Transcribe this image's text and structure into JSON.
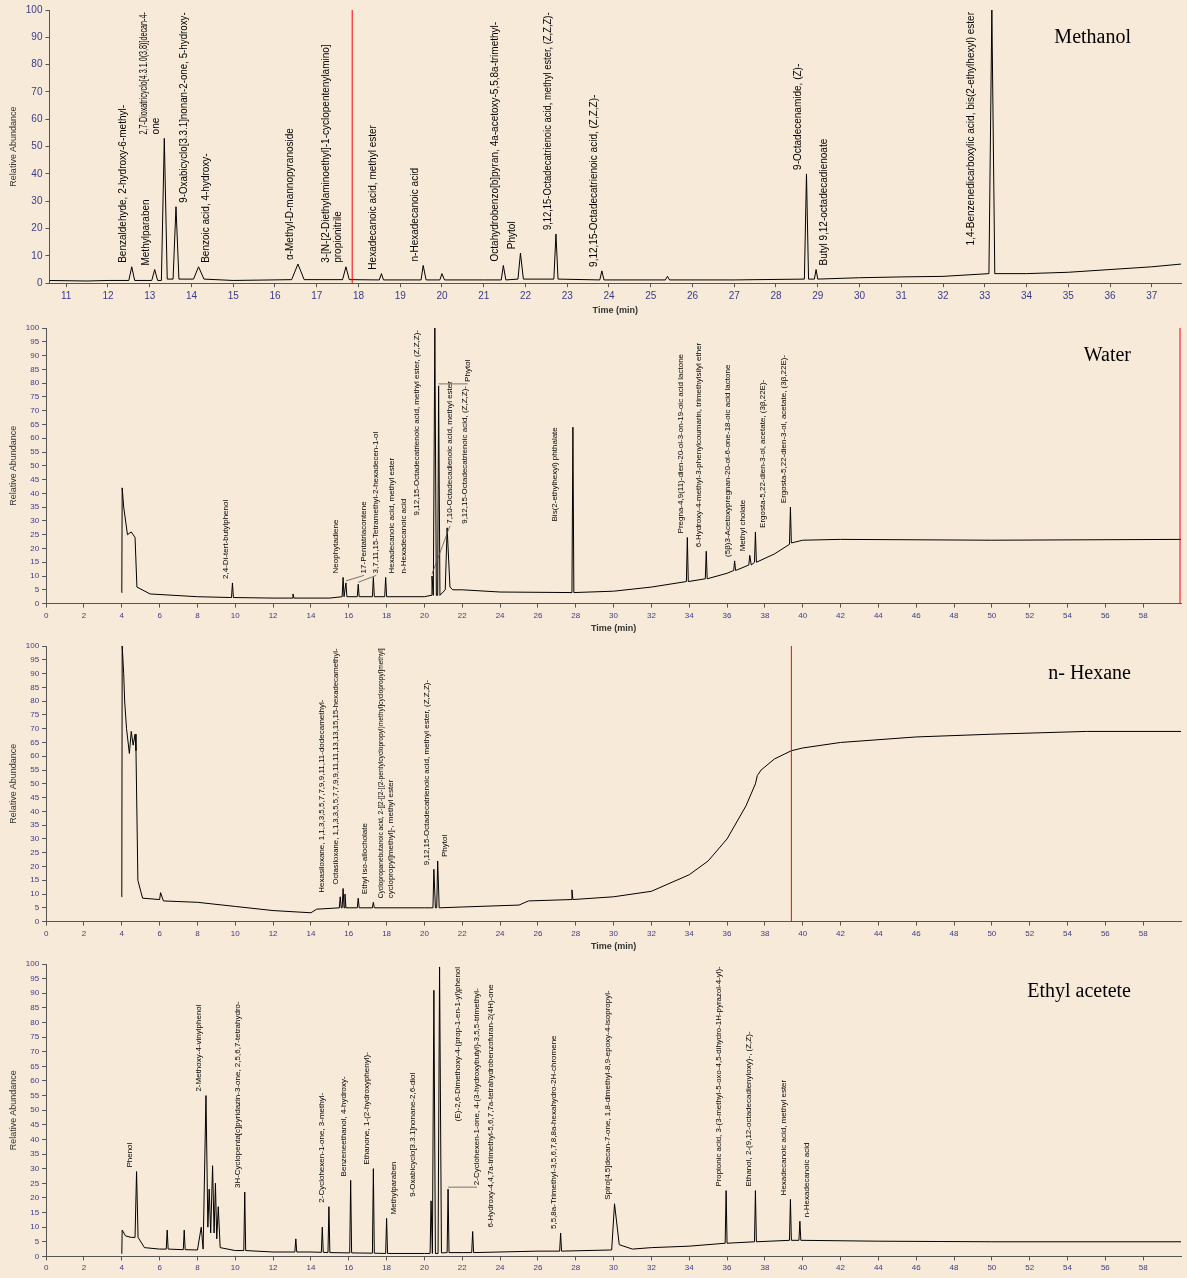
{
  "chart_data": [
    {
      "type": "line",
      "title": "Methanol",
      "xlabel": "Time (min)",
      "ylabel": "Relative Abundance",
      "xlim": [
        10.6,
        37.7
      ],
      "xticks": [
        11,
        12,
        13,
        14,
        15,
        16,
        17,
        18,
        19,
        20,
        21,
        22,
        23,
        24,
        25,
        26,
        27,
        28,
        29,
        30,
        31,
        32,
        33,
        34,
        35,
        36,
        37
      ],
      "ylim": [
        0,
        100
      ],
      "yticks": [
        0,
        10,
        20,
        30,
        40,
        50,
        60,
        70,
        80,
        90,
        100
      ],
      "marker": "none",
      "series": [
        {
          "color": "#000000",
          "x": [
            10.6,
            11.5,
            12.0,
            12.5,
            12.57,
            12.64,
            13.05,
            13.12,
            13.19,
            13.28,
            13.35,
            13.42,
            13.56,
            13.63,
            13.7,
            14.05,
            14.17,
            14.3,
            15,
            16.4,
            16.55,
            16.7,
            17.62,
            17.7,
            17.78,
            18.5,
            18.55,
            18.6,
            19.5,
            19.55,
            19.62,
            19.95,
            20.0,
            20.06,
            21,
            21.42,
            21.47,
            21.53,
            21.82,
            21.88,
            21.95,
            22.68,
            22.73,
            22.78,
            23.78,
            23.83,
            23.88,
            25.35,
            25.4,
            25.45,
            27,
            28.68,
            28.73,
            28.78,
            28.92,
            28.96,
            29.0,
            30,
            31,
            32,
            33.1,
            33.17,
            33.24,
            34,
            35,
            36,
            37,
            37.7
          ],
          "values": [
            1,
            0.8,
            1,
            1,
            6,
            1,
            1,
            5,
            1,
            1,
            53,
            1.5,
            1.5,
            28,
            1.5,
            1.5,
            6,
            1.5,
            1,
            1.3,
            7,
            1.3,
            1.3,
            6,
            1.3,
            1.2,
            3.5,
            1.2,
            1.2,
            6.5,
            1.2,
            1.2,
            3.5,
            1.2,
            1.2,
            1.2,
            6.5,
            1.2,
            1.5,
            11,
            1.5,
            1.5,
            18,
            1.5,
            1.2,
            4.5,
            1.2,
            1.2,
            2.5,
            1.2,
            1.2,
            1.5,
            40,
            1.5,
            1.5,
            5,
            1.5,
            2,
            2.3,
            2.5,
            3.5,
            100,
            3.5,
            3.5,
            4,
            5,
            6,
            7
          ]
        }
      ],
      "ref_lines": [
        {
          "axis": "x",
          "value": 17.85,
          "color": "#ff0000"
        }
      ],
      "annotations": [
        {
          "text": "Benzaldehyde, 2-hydroxy-6-methyl-",
          "x": 12.57,
          "y": 6
        },
        {
          "text": "Methylparaben",
          "x": 13.12,
          "y": 5
        },
        {
          "text": "2,7-Dioxatricyclo[4.3.1.0(3,8)]decan-4-\none",
          "x": 13.35,
          "y": 53
        },
        {
          "text": "9-Oxabicyclo[3.3.1]nonan-2-one, 5-hydroxy-",
          "x": 13.63,
          "y": 28
        },
        {
          "text": "Benzoic acid, 4-hydroxy-",
          "x": 14.17,
          "y": 6
        },
        {
          "text": "α-Methyl-D-mannopyranoside",
          "x": 16.55,
          "y": 7
        },
        {
          "text": "3-[N-[2-Diethylaminoethyl]-1-cyclopentenylamino]\npropionitrile",
          "x": 17.7,
          "y": 6
        },
        {
          "text": "Hexadecanoic acid, methyl ester",
          "x": 18.55,
          "y": 3.5
        },
        {
          "text": "n-Hexadecanoic acid",
          "x": 19.55,
          "y": 6.5
        },
        {
          "text": "Octahydrobenzo[b]pyran, 4a-acetoxy-5,5,8a-trimethyl-",
          "x": 21.47,
          "y": 6.5
        },
        {
          "text": "Phytol",
          "x": 21.88,
          "y": 11
        },
        {
          "text": "9,12,15-Octadecatrienoic acid, methyl ester, (Z,Z,Z)-",
          "x": 22.73,
          "y": 18
        },
        {
          "text": "9,12,15-Octadecatrienoic acid, (Z,Z,Z)-",
          "x": 23.83,
          "y": 4.5
        },
        {
          "text": "9-Octadecenamide, (Z)-",
          "x": 28.73,
          "y": 40
        },
        {
          "text": "Butyl 9,12-octadecadienoate",
          "x": 28.96,
          "y": 5
        },
        {
          "text": "1,4-Benzenedicarboxylic acid, bis(2-ethylhexyl) ester",
          "x": 33.17,
          "y": 100
        }
      ]
    },
    {
      "type": "line",
      "title": "Water",
      "xlabel": "Time (min)",
      "ylabel": "Relative Abundance",
      "xlim": [
        0,
        60
      ],
      "xticks": [
        0,
        2,
        4,
        6,
        8,
        10,
        12,
        14,
        16,
        18,
        20,
        22,
        24,
        26,
        28,
        30,
        32,
        34,
        36,
        38,
        40,
        42,
        44,
        46,
        48,
        50,
        52,
        54,
        56,
        58
      ],
      "ylim": [
        0,
        100
      ],
      "yticks": [
        0,
        5,
        10,
        15,
        20,
        25,
        30,
        35,
        40,
        45,
        50,
        55,
        60,
        65,
        70,
        75,
        80,
        85,
        90,
        95,
        100
      ],
      "marker": "none",
      "series": [
        {
          "color": "#000000",
          "x": [
            4.0,
            4.02,
            4.1,
            4.3,
            4.5,
            4.7,
            4.8,
            5.5,
            8,
            9.8,
            9.85,
            9.9,
            12,
            13.0,
            13.05,
            13.1,
            15,
            15.65,
            15.7,
            15.75,
            15.8,
            15.85,
            15.9,
            16.45,
            16.5,
            16.55,
            17.25,
            17.3,
            17.35,
            17.9,
            17.95,
            18.0,
            20,
            20.35,
            20.4,
            20.47,
            20.55,
            20.63,
            20.7,
            20.75,
            20.82,
            21.1,
            21.2,
            21.35,
            21.5,
            22,
            24,
            27.8,
            27.85,
            27.9,
            30,
            32,
            33.85,
            33.9,
            33.95,
            34.85,
            34.9,
            34.95,
            36,
            36.35,
            36.4,
            36.45,
            37.15,
            37.2,
            37.28,
            37.45,
            37.5,
            37.55,
            38.5,
            39.3,
            39.35,
            39.4,
            40,
            42,
            50,
            60
          ],
          "values": [
            4,
            42,
            35,
            25,
            26,
            24,
            6,
            3.5,
            2.5,
            2.2,
            7.5,
            2.2,
            2,
            2,
            3.5,
            2,
            2,
            2.5,
            9.5,
            2.5,
            2.5,
            7.5,
            2.5,
            2.5,
            7,
            2.5,
            2.5,
            9.5,
            2.5,
            2.5,
            9.5,
            2.5,
            2.5,
            3,
            10,
            3,
            100,
            3,
            3,
            79,
            3,
            5,
            27.5,
            6,
            5,
            5,
            4.2,
            4,
            64,
            4,
            4.5,
            6,
            8,
            24,
            8,
            9,
            19,
            9,
            11,
            12,
            15.5,
            12,
            14,
            17.5,
            14,
            15,
            26,
            15,
            18,
            21.5,
            35,
            22,
            23,
            23.3,
            23,
            23.3
          ]
        }
      ],
      "ref_lines": [
        {
          "axis": "x",
          "value": 60,
          "color": "#ff0000"
        }
      ],
      "annotations": [
        {
          "text": "2,4-Di-tert-butylphenol",
          "x": 9.85,
          "y": 7.5
        },
        {
          "text": "Neophytadiene",
          "x": 15.7,
          "y": 9.5
        },
        {
          "text": "17-Pentatriacontene",
          "x": 15.85,
          "y": 7.5
        },
        {
          "text": "3,7,11,15-Tetramethyl-2-hexadecen-1-ol",
          "x": 16.5,
          "y": 7
        },
        {
          "text": "Hexadecanoic acid, methyl ester",
          "x": 17.3,
          "y": 9.5
        },
        {
          "text": "n-Hexadecanoic acid",
          "x": 17.95,
          "y": 9.5
        },
        {
          "text": "7,10-Octadecadienoic acid, methyl ester",
          "x": 20.4,
          "y": 10
        },
        {
          "text": "9,12,15-Octadecatrienoic acid, methyl ester, (Z,Z,Z)-",
          "x": 20.55,
          "y": 100
        },
        {
          "text": "Phytol",
          "x": 20.75,
          "y": 79
        },
        {
          "text": "9,12,15-Octadecatrienoic acid, (Z,Z,Z)-",
          "x": 21.2,
          "y": 27.5
        },
        {
          "text": "Bis(2-ethylhexyl) phthalate",
          "x": 27.85,
          "y": 64
        },
        {
          "text": "Pregna-4,9(11)-dien-20-ol-3-on-19-oic acid lactone",
          "x": 33.9,
          "y": 24
        },
        {
          "text": "6-Hydroxy-4-methyl-3-phenylcoumarin, trimethylsilyl ether",
          "x": 34.9,
          "y": 19
        },
        {
          "text": "(5β)3-Acetoxypregnan-20-ol-6-one-18-oic acid lactone",
          "x": 36.4,
          "y": 15.5
        },
        {
          "text": "Methyl cholate",
          "x": 37.2,
          "y": 17.5
        },
        {
          "text": "Ergosta-5,22-dien-3-ol, acetate, (3β,22E)-",
          "x": 37.5,
          "y": 26
        },
        {
          "text": "Ergosta-5,22-dien-3-ol, acetate, (3β,22E)-",
          "x": 39.35,
          "y": 35
        }
      ]
    },
    {
      "type": "line",
      "title": "n- Hexane",
      "xlabel": "Time (min)",
      "ylabel": "Relative Abundance",
      "xlim": [
        0,
        60
      ],
      "xticks": [
        0,
        2,
        4,
        6,
        8,
        10,
        12,
        14,
        16,
        18,
        20,
        22,
        24,
        26,
        28,
        30,
        32,
        34,
        36,
        38,
        40,
        42,
        44,
        46,
        48,
        50,
        52,
        54,
        56,
        58
      ],
      "ylim": [
        0,
        100
      ],
      "yticks": [
        0,
        5,
        10,
        15,
        20,
        25,
        30,
        35,
        40,
        45,
        50,
        55,
        60,
        65,
        70,
        75,
        80,
        85,
        90,
        95,
        100
      ],
      "marker": "none",
      "series": [
        {
          "color": "#000000",
          "x": [
            4.0,
            4.02,
            4.1,
            4.15,
            4.25,
            4.4,
            4.5,
            4.6,
            4.7,
            4.75,
            4.85,
            5.0,
            5.1,
            6.0,
            6.05,
            6.2,
            8,
            10,
            12,
            14,
            14.3,
            15.5,
            15.55,
            15.6,
            15.65,
            15.7,
            15.75,
            15.8,
            15.85,
            16.45,
            16.5,
            16.55,
            17.25,
            17.3,
            17.35,
            20,
            20.45,
            20.5,
            20.58,
            20.65,
            20.7,
            20.78,
            22,
            25,
            25.5,
            27.75,
            27.8,
            27.85,
            30,
            32,
            34,
            35,
            36,
            37,
            37.5,
            37.6,
            37.8,
            38.5,
            39.4,
            40,
            42,
            46,
            50,
            55,
            60
          ],
          "values": [
            9,
            100,
            90,
            80,
            70,
            61,
            69,
            64,
            68,
            62,
            15,
            11,
            8.5,
            8,
            10.5,
            7.5,
            7,
            5.5,
            4,
            3.2,
            4.5,
            5,
            9,
            5,
            5,
            12,
            5,
            10,
            5,
            5,
            8.5,
            5,
            5,
            7,
            5,
            5,
            5,
            19,
            5,
            5,
            22,
            5,
            5.3,
            6,
            7.5,
            8,
            11.5,
            8,
            9,
            11,
            17,
            22,
            30,
            42,
            50,
            53,
            55,
            59,
            62,
            63,
            65,
            67,
            68,
            69,
            69
          ]
        }
      ],
      "ref_lines": [
        {
          "axis": "x",
          "value": 39.4,
          "color": "#ff0000"
        }
      ],
      "annotations": [
        {
          "text": "Hexasiloxane, 1,1,3,3,5,5,7,7,9,9,11,11-dodecamethyl-",
          "x": 15.55,
          "y": 9
        },
        {
          "text": "Octasiloxane, 1,1,3,3,5,5,7,7,9,9,11,11,13,13,15,15-hexadecamethyl-",
          "x": 15.7,
          "y": 12
        },
        {
          "text": "Ethyl iso-allocholate",
          "x": 16.5,
          "y": 8.5
        },
        {
          "text": "Cyclopropanebutanoic acid, 2-[[2-[[2-[(2-pentylcyclopropyl)methyl]cyclopropyl]methyl]\ncyclopropyl]methyl]-, methyl ester",
          "x": 17.3,
          "y": 7
        },
        {
          "text": "9,12,15-Octadecatrienoic acid, methyl ester, (Z,Z,Z)-",
          "x": 20.5,
          "y": 19
        },
        {
          "text": "Phytol",
          "x": 20.7,
          "y": 22
        }
      ]
    },
    {
      "type": "line",
      "title": "Ethyl acetete",
      "ylabel": "Relative Abundance",
      "xlim": [
        0,
        60
      ],
      "xticks": [
        0,
        2,
        4,
        6,
        8,
        10,
        12,
        14,
        16,
        18,
        20,
        22,
        24,
        26,
        28,
        30,
        32,
        34,
        36,
        38,
        40,
        42,
        44,
        46,
        48,
        50,
        52,
        54,
        56,
        58
      ],
      "ylim": [
        0,
        100
      ],
      "yticks": [
        0,
        5,
        10,
        15,
        20,
        25,
        30,
        35,
        40,
        45,
        50,
        55,
        60,
        65,
        70,
        75,
        80,
        85,
        90,
        95,
        100
      ],
      "marker": "none",
      "series": [
        {
          "color": "#000000",
          "x": [
            4.0,
            4.02,
            4.2,
            4.5,
            4.7,
            4.78,
            4.86,
            5.2,
            6,
            6.35,
            6.4,
            6.45,
            7.25,
            7.3,
            7.35,
            8,
            8.2,
            8.3,
            8.45,
            8.55,
            8.62,
            8.7,
            8.8,
            8.88,
            8.95,
            9.02,
            9.1,
            9.2,
            10,
            10.45,
            10.5,
            10.55,
            12,
            13.15,
            13.2,
            13.25,
            14,
            14.55,
            14.6,
            14.65,
            14.9,
            14.95,
            15.0,
            16.05,
            16.1,
            16.15,
            17.25,
            17.3,
            17.35,
            17.95,
            18.0,
            18.05,
            20,
            20.3,
            20.35,
            20.42,
            20.5,
            20.58,
            20.72,
            20.8,
            20.9,
            21.2,
            21.25,
            21.3,
            22,
            22.5,
            22.55,
            22.6,
            26,
            27.15,
            27.2,
            27.25,
            29.9,
            30.05,
            30.3,
            31,
            32,
            34,
            35.9,
            35.95,
            36.0,
            37.45,
            37.5,
            37.55,
            39.3,
            39.35,
            39.4,
            39.8,
            39.85,
            39.9,
            44,
            50,
            60
          ],
          "values": [
            1,
            9,
            7,
            6.5,
            6.5,
            29,
            6.5,
            3,
            2.5,
            2.5,
            9,
            2.5,
            2.3,
            9,
            2.3,
            2.2,
            10,
            2.5,
            55,
            10,
            23,
            8,
            31,
            8,
            25,
            6,
            17,
            3,
            2,
            2,
            22,
            2,
            1.5,
            1.5,
            6,
            1.5,
            1.5,
            1.4,
            10,
            1.4,
            1.3,
            17,
            1.3,
            1.2,
            26,
            1.2,
            1.1,
            30,
            1.1,
            1,
            13,
            1,
            1,
            1,
            19,
            1,
            91,
            1,
            1,
            99,
            1.2,
            1.3,
            23,
            1.3,
            1.3,
            1.3,
            8.5,
            1.3,
            1.8,
            1.8,
            8,
            1.8,
            2.2,
            18,
            4,
            2.5,
            3,
            3.5,
            4.5,
            22.5,
            4.5,
            5,
            22.5,
            5,
            5.5,
            19.5,
            5.5,
            5.5,
            12,
            5.5,
            5.2,
            5,
            5
          ]
        }
      ],
      "annotations": [
        {
          "text": "Phenol",
          "x": 4.78,
          "y": 29
        },
        {
          "text": "2-Methoxy-4-vinylphenol",
          "x": 8.45,
          "y": 55
        },
        {
          "text": "3H-Cyclopenta[c]pyridazin-3-one, 2,5,6,7-tetrahydro-",
          "x": 10.5,
          "y": 22
        },
        {
          "text": "2-Cyclohexen-1-one, 3-methyl-",
          "x": 14.95,
          "y": 17
        },
        {
          "text": "Benzeneethanol, 4-hydroxy-",
          "x": 16.1,
          "y": 26
        },
        {
          "text": "Ethanone, 1-(2-hydroxyphenyl)-",
          "x": 17.3,
          "y": 30
        },
        {
          "text": "Methylparaben",
          "x": 18.0,
          "y": 13
        },
        {
          "text": "9-Oxabicyclo[3.3.1]nonane-2,6-diol",
          "x": 20.35,
          "y": 19
        },
        {
          "text": "(E)-2,6-Dimethoxy-4-(prop-1-en-1-yl)phenol",
          "x": 20.8,
          "y": 99
        },
        {
          "text": "2-Cyclohexen-1-one, 4-(3-hydroxybutyl)-3,5,5-trimethyl-",
          "x": 21.25,
          "y": 23
        },
        {
          "text": "6-Hydroxy-4,4,7a-trimethyl-5,6,7,7a-tetrahydrobenzofuran-2(4H)-one",
          "x": 22.55,
          "y": 8.5
        },
        {
          "text": "5,5,8a-Trimethyl-3,5,6,7,8,8a-hexahydro-2H-chromene",
          "x": 27.2,
          "y": 8
        },
        {
          "text": "Spiro[4.5]decan-7-one, 1,8-dimethyl-8,9-epoxy-4-isopropyl-",
          "x": 30.05,
          "y": 18
        },
        {
          "text": "Propionic acid, 3-(3-methyl-5-oxo-4,5-dihydro-1H-pyrazol-4-yl)-",
          "x": 35.95,
          "y": 22.5
        },
        {
          "text": "Ethanol, 2-(9,12-octadecadienyloxy)-, (Z,Z)-",
          "x": 37.5,
          "y": 22.5
        },
        {
          "text": "Hexadecanoic acid, methyl ester",
          "x": 39.35,
          "y": 19.5
        },
        {
          "text": "n-Hexadecanoic acid",
          "x": 39.85,
          "y": 12
        }
      ]
    }
  ]
}
